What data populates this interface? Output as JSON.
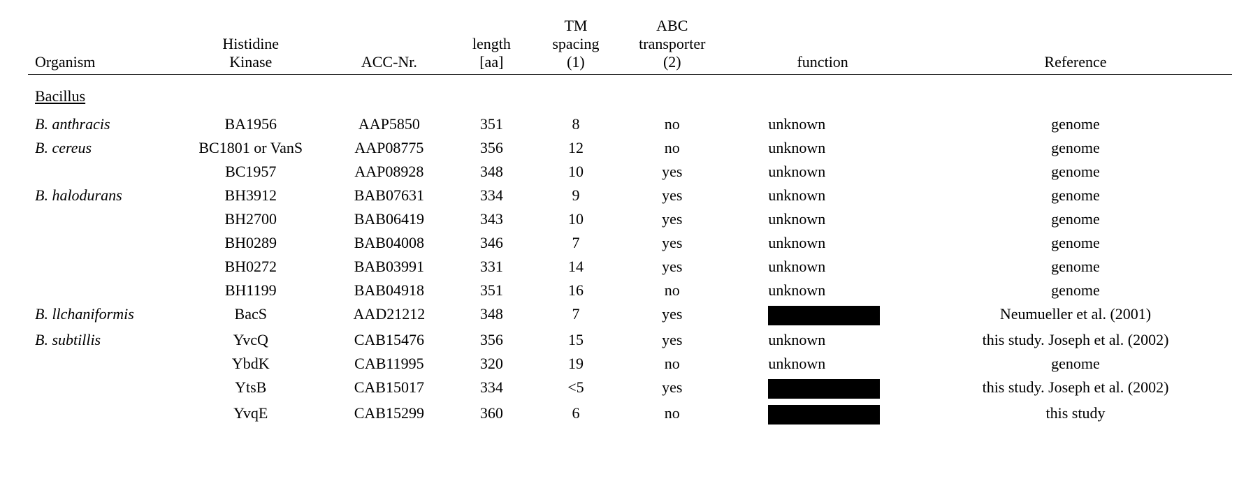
{
  "table": {
    "columns": {
      "organism": "Organism",
      "histidine_kinase": "Histidine\nKinase",
      "acc_nr": "ACC-Nr.",
      "length": "length\n[aa]",
      "tm_spacing": "TM\nspacing\n(1)",
      "abc_transporter": "ABC\ntransporter\n(2)",
      "function": "function",
      "reference": "Reference"
    },
    "section_header": "Bacillus",
    "rows": [
      {
        "organism": "B. anthracis",
        "histidine_kinase": "BA1956",
        "acc_nr": "AAP5850",
        "length": "351",
        "tm_spacing": "8",
        "abc_transporter": "no",
        "function": "unknown",
        "reference": "genome"
      },
      {
        "organism": "B. cereus",
        "histidine_kinase": "BC1801 or VanS",
        "acc_nr": "AAP08775",
        "length": "356",
        "tm_spacing": "12",
        "abc_transporter": "no",
        "function": "unknown",
        "reference": "genome"
      },
      {
        "organism": "",
        "histidine_kinase": "BC1957",
        "acc_nr": "AAP08928",
        "length": "348",
        "tm_spacing": "10",
        "abc_transporter": "yes",
        "function": "unknown",
        "reference": "genome"
      },
      {
        "organism": "B. halodurans",
        "histidine_kinase": "BH3912",
        "acc_nr": "BAB07631",
        "length": "334",
        "tm_spacing": "9",
        "abc_transporter": "yes",
        "function": "unknown",
        "reference": "genome"
      },
      {
        "organism": "",
        "histidine_kinase": "BH2700",
        "acc_nr": "BAB06419",
        "length": "343",
        "tm_spacing": "10",
        "abc_transporter": "yes",
        "function": "unknown",
        "reference": "genome"
      },
      {
        "organism": "",
        "histidine_kinase": "BH0289",
        "acc_nr": "BAB04008",
        "length": "346",
        "tm_spacing": "7",
        "abc_transporter": "yes",
        "function": "unknown",
        "reference": "genome"
      },
      {
        "organism": "",
        "histidine_kinase": "BH0272",
        "acc_nr": "BAB03991",
        "length": "331",
        "tm_spacing": "14",
        "abc_transporter": "yes",
        "function": "unknown",
        "reference": "genome"
      },
      {
        "organism": "",
        "histidine_kinase": "BH1199",
        "acc_nr": "BAB04918",
        "length": "351",
        "tm_spacing": "16",
        "abc_transporter": "no",
        "function": "unknown",
        "reference": "genome"
      },
      {
        "organism": "B. llchaniformis",
        "histidine_kinase": "BacS",
        "acc_nr": "AAD21212",
        "length": "348",
        "tm_spacing": "7",
        "abc_transporter": "yes",
        "function": "__REDACTED__",
        "reference": "Neumueller et al. (2001)"
      },
      {
        "organism": "B. subtillis",
        "histidine_kinase": "YvcQ",
        "acc_nr": "CAB15476",
        "length": "356",
        "tm_spacing": "15",
        "abc_transporter": "yes",
        "function": "unknown",
        "reference": "this study. Joseph et al. (2002)"
      },
      {
        "organism": "",
        "histidine_kinase": "YbdK",
        "acc_nr": "CAB11995",
        "length": "320",
        "tm_spacing": "19",
        "abc_transporter": "no",
        "function": "unknown",
        "reference": "genome"
      },
      {
        "organism": "",
        "histidine_kinase": "YtsB",
        "acc_nr": "CAB15017",
        "length": "334",
        "tm_spacing": "<5",
        "abc_transporter": "yes",
        "function": "__REDACTED__",
        "reference": "this study. Joseph et al. (2002)"
      },
      {
        "organism": "",
        "histidine_kinase": "YvqE",
        "acc_nr": "CAB15299",
        "length": "360",
        "tm_spacing": "6",
        "abc_transporter": "no",
        "function": "__REDACTED__",
        "reference": "this study"
      }
    ],
    "styling": {
      "font_family": "Times New Roman",
      "font_size_pt": 22,
      "text_color": "#000000",
      "background_color": "#ffffff",
      "header_border_color": "#000000",
      "redacted_color": "#000000",
      "col_widths_pct": [
        12,
        13,
        10,
        7,
        7,
        9,
        16,
        26
      ],
      "organism_col_align": "left",
      "other_cols_align": "center",
      "function_col_align": "left",
      "organism_style": "italic",
      "section_header_style": "underline"
    }
  }
}
